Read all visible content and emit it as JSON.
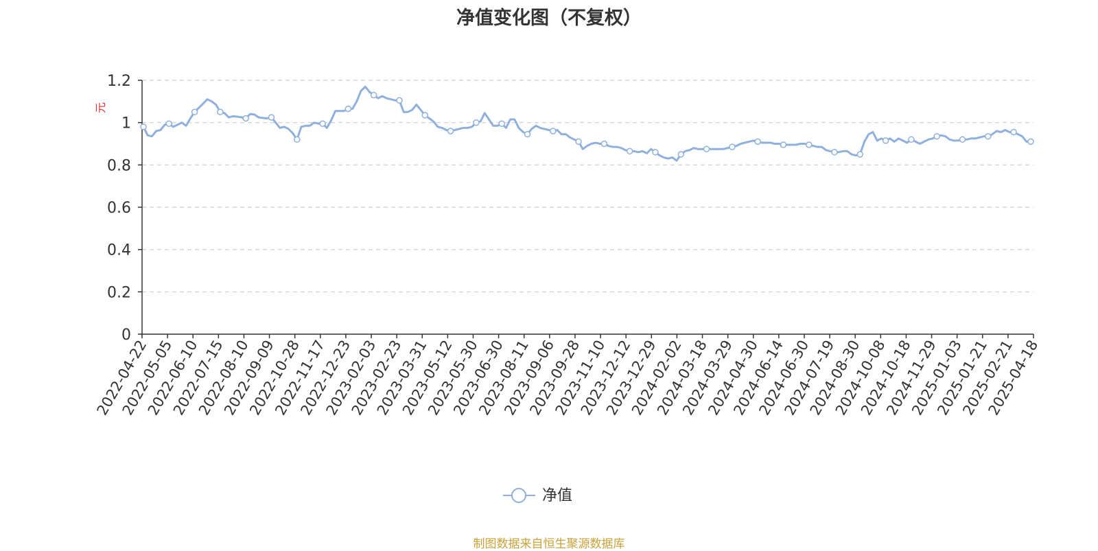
{
  "title": "净值变化图（不复权）",
  "footer": "制图数据来自恒生聚源数据库",
  "colors": {
    "line": "#8fb0dc",
    "axis": "#333333",
    "grid": "#cccccc",
    "unit": "#e8322f",
    "title": "#333333",
    "footer": "#c9a23b"
  },
  "chart_data": {
    "type": "line",
    "ylabel": "元",
    "ylim": [
      0,
      1.2
    ],
    "yticks": [
      "0",
      "0.2",
      "0.4",
      "0.6",
      "0.8",
      "1",
      "1.2"
    ],
    "xtick_labels": [
      "2022-04-22",
      "2022-05-05",
      "2022-06-10",
      "2022-07-15",
      "2022-08-10",
      "2022-09-09",
      "2022-10-28",
      "2022-11-17",
      "2022-12-23",
      "2023-02-03",
      "2023-02-23",
      "2023-03-31",
      "2023-05-12",
      "2023-05-30",
      "2023-06-30",
      "2023-08-11",
      "2023-09-06",
      "2023-09-28",
      "2023-11-10",
      "2023-12-12",
      "2023-12-29",
      "2024-02-02",
      "2024-03-18",
      "2024-03-29",
      "2024-04-30",
      "2024-06-14",
      "2024-06-30",
      "2024-07-19",
      "2024-08-30",
      "2024-10-08",
      "2024-10-18",
      "2024-11-29",
      "2025-01-03",
      "2025-01-21",
      "2025-02-21",
      "2025-04-18"
    ],
    "grid": true,
    "legend_position": "bottom",
    "series": [
      {
        "name": "净值",
        "values": [
          0.98,
          0.94,
          0.935,
          0.96,
          0.965,
          0.99,
          0.995,
          0.98,
          0.99,
          1.0,
          0.985,
          1.02,
          1.05,
          1.07,
          1.09,
          1.11,
          1.1,
          1.085,
          1.05,
          1.045,
          1.025,
          1.03,
          1.028,
          1.025,
          1.02,
          1.04,
          1.038,
          1.025,
          1.022,
          1.02,
          1.025,
          1.0,
          0.975,
          0.98,
          0.97,
          0.95,
          0.92,
          0.98,
          0.985,
          0.985,
          1.0,
          0.995,
          0.995,
          0.975,
          1.01,
          1.055,
          1.055,
          1.055,
          1.065,
          1.065,
          1.1,
          1.15,
          1.17,
          1.145,
          1.13,
          1.115,
          1.125,
          1.115,
          1.11,
          1.105,
          1.105,
          1.05,
          1.05,
          1.06,
          1.085,
          1.06,
          1.035,
          1.02,
          1.005,
          0.98,
          0.975,
          0.965,
          0.96,
          0.965,
          0.97,
          0.975,
          0.975,
          0.98,
          1.0,
          1.005,
          1.045,
          1.015,
          0.985,
          0.985,
          0.995,
          0.975,
          1.015,
          1.015,
          0.975,
          0.955,
          0.945,
          0.97,
          0.985,
          0.975,
          0.97,
          0.965,
          0.96,
          0.965,
          0.945,
          0.945,
          0.93,
          0.92,
          0.91,
          0.875,
          0.89,
          0.9,
          0.905,
          0.9,
          0.9,
          0.89,
          0.885,
          0.885,
          0.88,
          0.87,
          0.865,
          0.865,
          0.86,
          0.865,
          0.855,
          0.875,
          0.86,
          0.845,
          0.835,
          0.83,
          0.835,
          0.82,
          0.85,
          0.865,
          0.87,
          0.88,
          0.875,
          0.875,
          0.875,
          0.875,
          0.875,
          0.875,
          0.875,
          0.88,
          0.885,
          0.89,
          0.9,
          0.905,
          0.91,
          0.915,
          0.91,
          0.905,
          0.905,
          0.905,
          0.9,
          0.9,
          0.895,
          0.895,
          0.895,
          0.895,
          0.9,
          0.9,
          0.895,
          0.89,
          0.885,
          0.885,
          0.87,
          0.865,
          0.86,
          0.86,
          0.865,
          0.865,
          0.85,
          0.845,
          0.85,
          0.91,
          0.945,
          0.955,
          0.915,
          0.925,
          0.915,
          0.925,
          0.91,
          0.925,
          0.915,
          0.905,
          0.92,
          0.91,
          0.9,
          0.91,
          0.92,
          0.925,
          0.935,
          0.94,
          0.935,
          0.92,
          0.915,
          0.915,
          0.92,
          0.92,
          0.925,
          0.925,
          0.93,
          0.935,
          0.935,
          0.945,
          0.96,
          0.955,
          0.965,
          0.955,
          0.955,
          0.945,
          0.935,
          0.91,
          0.91
        ]
      }
    ]
  }
}
